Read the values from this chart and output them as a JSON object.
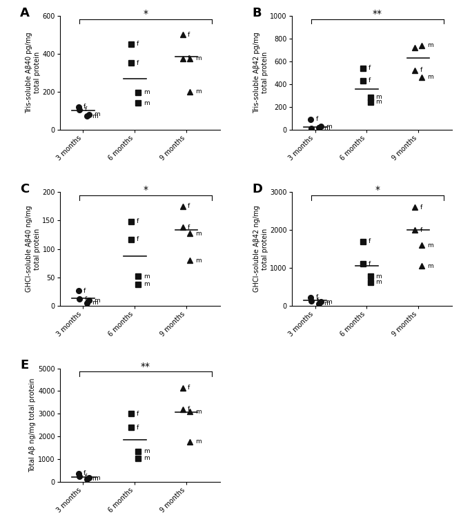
{
  "panels": [
    {
      "label": "A",
      "ylabel": "Tris-soluble Aβ40 pg/mg\ntotal protein",
      "ylim": [
        0,
        600
      ],
      "yticks": [
        0,
        200,
        400,
        600
      ],
      "sig": "*",
      "3m_f": [
        105,
        120
      ],
      "3m_m": [
        70,
        80
      ],
      "3m_med": 100,
      "6m_f": [
        350,
        450
      ],
      "6m_m": [
        140,
        195
      ],
      "6m_med": 268,
      "9m_f": [
        375,
        500
      ],
      "9m_m": [
        200,
        375
      ],
      "9m_med": 385
    },
    {
      "label": "B",
      "ylabel": "Tris-soluble Aβ42 pg/mg\ntotal protein",
      "ylim": [
        0,
        1000
      ],
      "yticks": [
        0,
        200,
        400,
        600,
        800,
        1000
      ],
      "sig": "**",
      "3m_f": [
        10,
        90
      ],
      "3m_m": [
        15,
        25
      ],
      "3m_med": 22,
      "6m_f": [
        430,
        540
      ],
      "6m_m": [
        240,
        285
      ],
      "6m_med": 355,
      "9m_f": [
        520,
        720
      ],
      "9m_m": [
        460,
        740
      ],
      "9m_med": 630
    },
    {
      "label": "C",
      "ylabel": "GHCl-soluble Aβ40 ng/mg\ntotal protein",
      "ylim": [
        0,
        200
      ],
      "yticks": [
        0,
        50,
        100,
        150,
        200
      ],
      "sig": "*",
      "3m_f": [
        12,
        26
      ],
      "3m_m": [
        5,
        9
      ],
      "3m_med": 13,
      "6m_f": [
        117,
        148
      ],
      "6m_m": [
        38,
        52
      ],
      "6m_med": 87,
      "9m_f": [
        138,
        175
      ],
      "9m_m": [
        80,
        127
      ],
      "9m_med": 133
    },
    {
      "label": "D",
      "ylabel": "GHCl-soluble Aβ42 ng/mg\ntotal protein",
      "ylim": [
        0,
        3000
      ],
      "yticks": [
        0,
        1000,
        2000,
        3000
      ],
      "sig": "*",
      "3m_f": [
        130,
        220
      ],
      "3m_m": [
        60,
        100
      ],
      "3m_med": 150,
      "6m_f": [
        1100,
        1700
      ],
      "6m_m": [
        620,
        780
      ],
      "6m_med": 1050,
      "9m_f": [
        2000,
        2600
      ],
      "9m_m": [
        1050,
        1600
      ],
      "9m_med": 2000
    },
    {
      "label": "E",
      "ylabel": "Total Aβ ng/mg total protein",
      "ylim": [
        0,
        5000
      ],
      "yticks": [
        0,
        1000,
        2000,
        3000,
        4000,
        5000
      ],
      "sig": "**",
      "3m_f": [
        250,
        380
      ],
      "3m_m": [
        130,
        190
      ],
      "3m_med": 230,
      "6m_f": [
        2400,
        3000
      ],
      "6m_m": [
        1050,
        1350
      ],
      "6m_med": 1850,
      "9m_f": [
        3200,
        4150
      ],
      "9m_m": [
        1780,
        3100
      ],
      "9m_med": 3080
    }
  ],
  "x_labels": [
    "3 months",
    "6 months",
    "9 months"
  ],
  "marker_color": "#111111",
  "bg_color": "#ffffff"
}
